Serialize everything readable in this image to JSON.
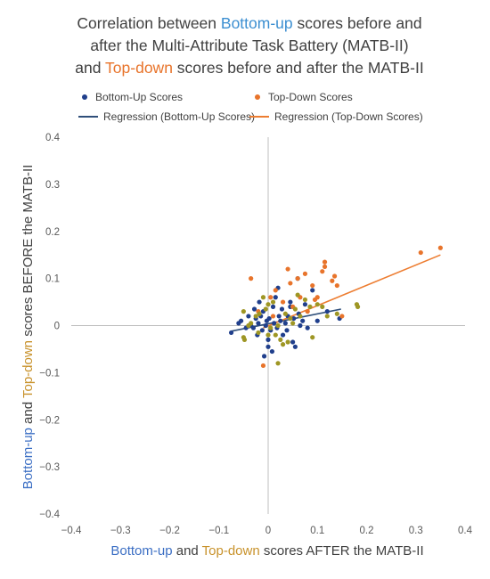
{
  "title": {
    "line1_pre": "Correlation between ",
    "line1_hl": "Bottom-up",
    "line1_post": " scores before and",
    "line2": "after the Multi-Attribute Task Battery (MATB-II)",
    "line3_hl": "and ",
    "line3_hl2": "Top-down",
    "line3_post": " scores before and after the MATB-II"
  },
  "legend": {
    "bu_points": "Bottom-Up Scores",
    "td_points": "Top-Down Scores",
    "bu_line": "Regression (Bottom-Up Scores)",
    "td_line": "Regression (Top-Down Scores)"
  },
  "axes": {
    "y_title_a": "Bottom-up",
    "y_title_b": " and ",
    "y_title_c": "Top-down",
    "y_title_d": " scores BEFORE the MATB-II",
    "x_title_a": "Bottom-up",
    "x_title_b": " and ",
    "x_title_c": "Top-down",
    "x_title_d": " scores AFTER the MATB-II"
  },
  "colors": {
    "bottom_up": "#203f8c",
    "top_down": "#e8742b",
    "mixed": "#9e9624",
    "reg_bu": "#2f4f7a",
    "reg_td": "#ed7d31",
    "axis": "#bfbfbf",
    "title_bu": "#3c8fd1",
    "title_td": "#e8742b"
  },
  "chart_data": {
    "type": "scatter",
    "title": "Correlation between Bottom-up scores before and after the Multi-Attribute Task Battery (MATB-II) and Top-down scores before and after the MATB-II",
    "xlabel": "Bottom-up and Top-down scores AFTER the MATB-II",
    "ylabel": "Bottom-up and Top-down scores BEFORE the MATB-II",
    "xlim": [
      -0.4,
      0.4
    ],
    "ylim": [
      -0.4,
      0.4
    ],
    "x_ticks": [
      "−0.4",
      "−0.3",
      "−0.2",
      "−0.1",
      "0",
      "0.1",
      "0.2",
      "0.3",
      "0.4"
    ],
    "y_ticks": [
      "0.4",
      "0.3",
      "0.2",
      "0.1",
      "0",
      "−0.1",
      "−0.2",
      "−0.3",
      "−0.4"
    ],
    "grid": false,
    "legend_position": "top",
    "series": [
      {
        "name": "Bottom-Up Scores",
        "color": "#203f8c",
        "points": [
          [
            -0.075,
            -0.015
          ],
          [
            -0.06,
            0.005
          ],
          [
            -0.055,
            0.01
          ],
          [
            -0.045,
            -0.005
          ],
          [
            -0.04,
            0.02
          ],
          [
            -0.035,
            0.0
          ],
          [
            -0.03,
            -0.005
          ],
          [
            -0.028,
            0.035
          ],
          [
            -0.025,
            0.015
          ],
          [
            -0.022,
            -0.02
          ],
          [
            -0.02,
            0.005
          ],
          [
            -0.018,
            0.05
          ],
          [
            -0.015,
            0.02
          ],
          [
            -0.012,
            -0.01
          ],
          [
            -0.01,
            0.03
          ],
          [
            -0.008,
            -0.065
          ],
          [
            -0.005,
            0.0
          ],
          [
            -0.003,
            0.01
          ],
          [
            0.0,
            -0.03
          ],
          [
            0.0,
            -0.045
          ],
          [
            0.002,
            0.015
          ],
          [
            0.005,
            -0.01
          ],
          [
            0.008,
            -0.055
          ],
          [
            0.01,
            0.04
          ],
          [
            0.012,
            0.005
          ],
          [
            0.015,
            0.06
          ],
          [
            0.018,
            -0.005
          ],
          [
            0.02,
            0.08
          ],
          [
            0.022,
            0.02
          ],
          [
            0.025,
            0.01
          ],
          [
            0.028,
            0.035
          ],
          [
            0.03,
            -0.02
          ],
          [
            0.035,
            0.005
          ],
          [
            0.038,
            -0.01
          ],
          [
            0.04,
            0.02
          ],
          [
            0.045,
            0.05
          ],
          [
            0.045,
            0.04
          ],
          [
            0.05,
            -0.035
          ],
          [
            0.052,
            0.015
          ],
          [
            0.055,
            -0.045
          ],
          [
            0.06,
            0.1
          ],
          [
            0.062,
            0.025
          ],
          [
            0.065,
            0.0
          ],
          [
            0.07,
            0.01
          ],
          [
            0.075,
            0.045
          ],
          [
            0.08,
            -0.005
          ],
          [
            0.09,
            0.075
          ],
          [
            0.1,
            0.01
          ],
          [
            0.12,
            0.03
          ],
          [
            0.145,
            0.015
          ]
        ]
      },
      {
        "name": "Top-Down Scores",
        "color": "#e8742b",
        "points": [
          [
            -0.035,
            0.1
          ],
          [
            -0.02,
            0.03
          ],
          [
            -0.01,
            -0.085
          ],
          [
            0.005,
            0.06
          ],
          [
            0.01,
            0.02
          ],
          [
            0.015,
            0.075
          ],
          [
            0.03,
            0.05
          ],
          [
            0.04,
            0.12
          ],
          [
            0.045,
            0.09
          ],
          [
            0.05,
            0.04
          ],
          [
            0.06,
            0.1
          ],
          [
            0.065,
            0.06
          ],
          [
            0.075,
            0.11
          ],
          [
            0.08,
            0.03
          ],
          [
            0.09,
            0.085
          ],
          [
            0.095,
            0.055
          ],
          [
            0.1,
            0.06
          ],
          [
            0.11,
            0.115
          ],
          [
            0.115,
            0.125
          ],
          [
            0.115,
            0.135
          ],
          [
            0.13,
            0.095
          ],
          [
            0.135,
            0.105
          ],
          [
            0.14,
            0.085
          ],
          [
            0.15,
            0.02
          ],
          [
            0.31,
            0.155
          ],
          [
            0.35,
            0.165
          ]
        ]
      },
      {
        "name": "",
        "color": "#9e9624",
        "points": [
          [
            -0.05,
            0.03
          ],
          [
            -0.05,
            -0.025
          ],
          [
            -0.048,
            -0.03
          ],
          [
            -0.04,
            0.0
          ],
          [
            -0.035,
            0.005
          ],
          [
            -0.025,
            0.02
          ],
          [
            -0.02,
            -0.015
          ],
          [
            -0.018,
            0.025
          ],
          [
            -0.01,
            0.06
          ],
          [
            -0.005,
            0.035
          ],
          [
            0.0,
            0.045
          ],
          [
            0.0,
            -0.02
          ],
          [
            0.005,
            -0.005
          ],
          [
            0.01,
            0.05
          ],
          [
            0.015,
            -0.02
          ],
          [
            0.02,
            -0.08
          ],
          [
            0.02,
            0.0
          ],
          [
            0.025,
            -0.03
          ],
          [
            0.03,
            -0.04
          ],
          [
            0.035,
            0.025
          ],
          [
            0.04,
            -0.035
          ],
          [
            0.045,
            0.015
          ],
          [
            0.05,
            0.005
          ],
          [
            0.055,
            0.035
          ],
          [
            0.06,
            0.065
          ],
          [
            0.065,
            0.02
          ],
          [
            0.075,
            0.055
          ],
          [
            0.085,
            0.04
          ],
          [
            0.09,
            -0.025
          ],
          [
            0.1,
            0.045
          ],
          [
            0.11,
            0.04
          ],
          [
            0.12,
            0.02
          ],
          [
            0.14,
            0.025
          ],
          [
            0.18,
            0.045
          ],
          [
            0.182,
            0.04
          ]
        ]
      }
    ],
    "regression": [
      {
        "name": "Regression (Bottom-Up Scores)",
        "color": "#2f4f7a",
        "x": [
          -0.075,
          0.148
        ],
        "y": [
          -0.012,
          0.035
        ]
      },
      {
        "name": "Regression (Top-Down Scores)",
        "color": "#ed7d31",
        "x": [
          -0.01,
          0.35
        ],
        "y": [
          -0.005,
          0.15
        ]
      }
    ]
  }
}
